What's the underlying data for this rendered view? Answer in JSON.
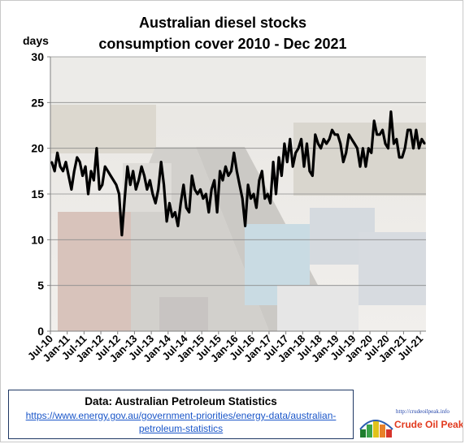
{
  "chart_data": {
    "type": "line",
    "title_line1": "Australian  diesel stocks",
    "title_line2": "consumption  cover 2010 - Dec 2021",
    "ylabel": "days",
    "ylim": [
      0,
      30
    ],
    "y_ticks": [
      "0",
      "5",
      "10",
      "15",
      "20",
      "25",
      "30"
    ],
    "x_tick_labels": [
      "Jul-10",
      "Jan-11",
      "Jul-11",
      "Jan-12",
      "Jul-12",
      "Jan-13",
      "Jul-13",
      "Jan-14",
      "Jul-14",
      "Jan-15",
      "Jul-15",
      "Jan-16",
      "Jul-16",
      "Jan-17",
      "Jul-17",
      "Jan-18",
      "Jul-18",
      "Jan-19",
      "Jul-19",
      "Jan-20",
      "Jul-20",
      "Jan-21",
      "Jul-21"
    ],
    "x_start": "Jul-2010",
    "x_end": "Dec-2021",
    "grid": true,
    "line_color": "#000000",
    "series": [
      {
        "values": [
          18.5,
          17.5,
          19.5,
          18.0,
          17.5,
          18.5,
          17.0,
          15.5,
          17.5,
          19.0,
          18.5,
          17.0,
          18.0,
          15.0,
          17.5,
          16.5,
          20.0,
          15.5,
          16.0,
          18.0,
          17.5,
          17.0,
          16.5,
          16.0,
          15.0,
          10.5,
          14.5,
          18.0,
          16.0,
          17.5,
          15.5,
          16.5,
          18.0,
          17.0,
          15.5,
          16.5,
          15.0,
          14.0,
          15.5,
          18.5,
          16.0,
          12.0,
          14.0,
          12.5,
          13.0,
          11.5,
          14.0,
          16.0,
          13.5,
          13.0,
          17.0,
          15.5,
          15.0,
          15.5,
          14.5,
          15.0,
          13.0,
          15.5,
          16.5,
          13.0,
          17.5,
          16.5,
          18.0,
          17.0,
          17.5,
          19.5,
          17.5,
          16.0,
          14.5,
          11.5,
          16.0,
          14.5,
          15.0,
          13.5,
          16.5,
          17.5,
          14.5,
          15.0,
          14.0,
          18.5,
          15.0,
          19.0,
          17.0,
          20.5,
          18.5,
          21.0,
          18.0,
          19.5,
          20.0,
          21.0,
          18.0,
          20.5,
          17.5,
          17.0,
          21.5,
          20.5,
          20.0,
          21.0,
          20.5,
          21.0,
          22.0,
          21.5,
          21.5,
          20.5,
          18.5,
          19.5,
          21.5,
          21.0,
          20.5,
          20.0,
          18.0,
          20.0,
          18.0,
          20.0,
          19.5,
          23.0,
          21.5,
          21.5,
          22.0,
          20.5,
          20.0,
          24.0,
          20.5,
          21.0,
          19.0,
          19.0,
          20.0,
          22.0,
          22.0,
          20.0,
          22.0,
          20.0,
          21.0,
          20.5
        ]
      }
    ]
  },
  "source": {
    "title": "Data: Australian Petroleum Statistics",
    "link": "https://www.energy.gov.au/government-priorities/energy-data/australian-petroleum-statistics"
  },
  "logo": {
    "url": "http://crudeoilpeak.info",
    "name": "Crude Oil Peak"
  }
}
